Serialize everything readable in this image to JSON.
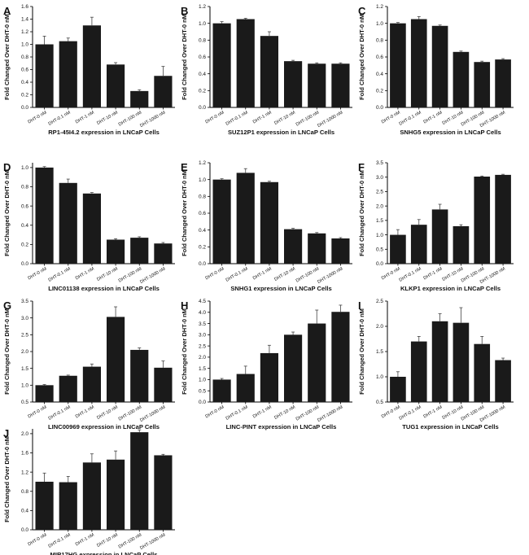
{
  "colors": {
    "bar": "#1a1a1a",
    "axis": "#000000",
    "text": "#111111"
  },
  "shared": {
    "ylabel": "Fold Changed Over DHT-0 nM",
    "categories": [
      "DHT-0 nM",
      "DHT-0.1 nM",
      "DHT-1 nM",
      "DHT-10 nM",
      "DHT-100 nM",
      "DHT-1000 nM"
    ]
  },
  "chart_data": [
    {
      "panel": "A",
      "type": "bar",
      "title": "RP1-45I4.2 expression in LNCaP Cells",
      "values": [
        1.0,
        1.05,
        1.3,
        0.68,
        0.26,
        0.5
      ],
      "errors": [
        0.13,
        0.05,
        0.13,
        0.03,
        0.02,
        0.15
      ],
      "ylim": [
        0,
        1.6
      ],
      "yticks": [
        0.0,
        0.2,
        0.4,
        0.6,
        0.8,
        1.0,
        1.2,
        1.4,
        1.6
      ],
      "ytick_labels": [
        "0.0",
        "0.2",
        "0.4",
        "0.6",
        "0.8",
        "1.0",
        "1.2",
        "1.4",
        "1.6"
      ]
    },
    {
      "panel": "B",
      "type": "bar",
      "title": "SUZ12P1 expression in LNCaP Cells",
      "values": [
        1.0,
        1.05,
        0.85,
        0.55,
        0.52,
        0.52
      ],
      "errors": [
        0.02,
        0.01,
        0.05,
        0.01,
        0.01,
        0.01
      ],
      "ylim": [
        0,
        1.2
      ],
      "yticks": [
        0.0,
        0.2,
        0.4,
        0.6,
        0.8,
        1.0,
        1.2
      ],
      "ytick_labels": [
        "0.0",
        "0.2",
        "0.4",
        "0.6",
        "0.8",
        "1.0",
        "1.2"
      ]
    },
    {
      "panel": "C",
      "type": "bar",
      "title": "SNHG5 expression in LNCaP Cells",
      "values": [
        1.0,
        1.05,
        0.97,
        0.66,
        0.54,
        0.57
      ],
      "errors": [
        0.01,
        0.03,
        0.01,
        0.01,
        0.01,
        0.01
      ],
      "ylim": [
        0,
        1.2
      ],
      "yticks": [
        0.0,
        0.2,
        0.4,
        0.6,
        0.8,
        1.0,
        1.2
      ],
      "ytick_labels": [
        "0.0",
        "0.2",
        "0.4",
        "0.6",
        "0.8",
        "1.0",
        "1.2"
      ]
    },
    {
      "panel": "D",
      "type": "bar",
      "title": "LINC01138 expression in LNCaP Cells",
      "values": [
        1.0,
        0.84,
        0.73,
        0.25,
        0.27,
        0.21
      ],
      "errors": [
        0.01,
        0.04,
        0.01,
        0.01,
        0.01,
        0.01
      ],
      "ylim": [
        0,
        1.05
      ],
      "yticks": [
        0.0,
        0.2,
        0.4,
        0.6,
        0.8,
        1.0
      ],
      "ytick_labels": [
        "0.0",
        "0.2",
        "0.4",
        "0.6",
        "0.8",
        "1.0"
      ]
    },
    {
      "panel": "E",
      "type": "bar",
      "title": "SNHG1 expression in LNCaP Cells",
      "values": [
        1.0,
        1.08,
        0.97,
        0.41,
        0.36,
        0.3
      ],
      "errors": [
        0.01,
        0.05,
        0.01,
        0.01,
        0.01,
        0.01
      ],
      "ylim": [
        0,
        1.2
      ],
      "yticks": [
        0.0,
        0.2,
        0.4,
        0.6,
        0.8,
        1.0,
        1.2
      ],
      "ytick_labels": [
        "0.0",
        "0.2",
        "0.4",
        "0.6",
        "0.8",
        "1.0",
        "1.2"
      ]
    },
    {
      "panel": "F",
      "type": "bar",
      "title": "KLKP1 expression in LNCaP Cells",
      "values": [
        1.0,
        1.35,
        1.88,
        1.3,
        3.02,
        3.08
      ],
      "errors": [
        0.18,
        0.18,
        0.18,
        0.05,
        0.02,
        0.02
      ],
      "ylim": [
        0,
        3.5
      ],
      "yticks": [
        0.0,
        0.5,
        1.0,
        1.5,
        2.0,
        2.5,
        3.0,
        3.5
      ],
      "ytick_labels": [
        "0.0",
        "0.5",
        "1.0",
        "1.5",
        "2.0",
        "2.5",
        "3.0",
        "3.5"
      ]
    },
    {
      "panel": "G",
      "type": "bar",
      "title": "LINC00969 expression in LNCaP Cells",
      "values": [
        1.0,
        1.28,
        1.55,
        3.03,
        2.05,
        1.52
      ],
      "errors": [
        0.02,
        0.02,
        0.08,
        0.3,
        0.06,
        0.2
      ],
      "ylim": [
        0.5,
        3.5
      ],
      "yticks": [
        0.5,
        1.0,
        1.5,
        2.0,
        2.5,
        3.0,
        3.5
      ],
      "ytick_labels": [
        "0.5",
        "1.0",
        "1.5",
        "2.0",
        "2.5",
        "3.0",
        "3.5"
      ]
    },
    {
      "panel": "H",
      "type": "bar",
      "title": "LINC-PINT expression in LNCaP Cells",
      "values": [
        1.0,
        1.25,
        2.18,
        3.0,
        3.5,
        4.02
      ],
      "errors": [
        0.05,
        0.35,
        0.35,
        0.12,
        0.6,
        0.3
      ],
      "ylim": [
        0,
        4.5
      ],
      "yticks": [
        0.0,
        0.5,
        1.0,
        1.5,
        2.0,
        2.5,
        3.0,
        3.5,
        4.0,
        4.5
      ],
      "ytick_labels": [
        "0.0",
        "0.5",
        "1.0",
        "1.5",
        "2.0",
        "2.5",
        "3.0",
        "3.5",
        "4.0",
        "4.5"
      ]
    },
    {
      "panel": "I",
      "type": "bar",
      "title": "TUG1 expression in LNCaP Cells",
      "values": [
        1.0,
        1.7,
        2.1,
        2.07,
        1.65,
        1.33
      ],
      "errors": [
        0.1,
        0.1,
        0.15,
        0.3,
        0.15,
        0.04
      ],
      "ylim": [
        0.5,
        2.5
      ],
      "yticks": [
        0.5,
        1.0,
        1.5,
        2.0,
        2.5
      ],
      "ytick_labels": [
        "0.5",
        "1.0",
        "1.5",
        "2.0",
        "2.5"
      ]
    },
    {
      "panel": "J",
      "type": "bar",
      "title": "MIR17HG expression in LNCaP Cells",
      "values": [
        1.0,
        0.99,
        1.4,
        1.46,
        2.03,
        1.55
      ],
      "errors": [
        0.18,
        0.12,
        0.18,
        0.18,
        0.05,
        0.02
      ],
      "ylim": [
        0,
        2.1
      ],
      "yticks": [
        0.0,
        0.4,
        0.8,
        1.2,
        1.6,
        2.0
      ],
      "ytick_labels": [
        "0.0",
        "0.4",
        "0.8",
        "1.2",
        "1.6",
        "2.0"
      ]
    }
  ]
}
